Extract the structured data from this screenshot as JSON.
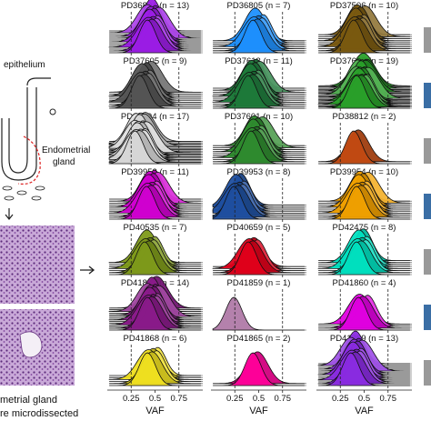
{
  "schematic": {
    "labels": [
      "epithelium",
      "Endometrial gland"
    ],
    "caption_lines": [
      "metrial gland",
      "re microdissected"
    ]
  },
  "chart_data": {
    "type": "area",
    "description": "Stacked ridgeline density plots of variant allele fraction per sample",
    "xlabel": "VAF",
    "xlim": [
      0,
      1
    ],
    "xticks": [
      0.25,
      0.5,
      0.75
    ],
    "xtick_labels": [
      "0.25",
      "0.5",
      "0.75"
    ],
    "reference_lines": [
      0.25,
      0.75
    ],
    "panels": [
      {
        "label": "PD36804 (n = 13)",
        "n": 13,
        "color": "#9B1CE6",
        "peak": 0.48
      },
      {
        "label": "PD36805 (n = 7)",
        "n": 7,
        "color": "#1E90FF",
        "peak": 0.5
      },
      {
        "label": "PD37506 (n = 10)",
        "n": 10,
        "color": "#7A5A10",
        "peak": 0.45
      },
      {
        "label": "PD37605 (n = 9)",
        "n": 9,
        "color": "#555555",
        "peak": 0.4
      },
      {
        "label": "PD37613 (n = 11)",
        "n": 11,
        "color": "#1E7A3A",
        "peak": 0.45
      },
      {
        "label": "PD37607 (n = 19)",
        "n": 19,
        "color": "#2AA02A",
        "peak": 0.48
      },
      {
        "label": "PD37594 (n = 17)",
        "n": 17,
        "color": "#D8D8D8",
        "peak": 0.35
      },
      {
        "label": "PD37601 (n = 10)",
        "n": 10,
        "color": "#2E8B2E",
        "peak": 0.48
      },
      {
        "label": "PD38812 (n = 2)",
        "n": 2,
        "color": "#C24A12",
        "peak": 0.45
      },
      {
        "label": "PD39952 (n = 11)",
        "n": 11,
        "color": "#D100D1",
        "peak": 0.47
      },
      {
        "label": "PD39953 (n = 8)",
        "n": 8,
        "color": "#1F4FA0",
        "peak": 0.3
      },
      {
        "label": "PD39954 (n = 10)",
        "n": 10,
        "color": "#F0A000",
        "peak": 0.48
      },
      {
        "label": "PD40535 (n = 7)",
        "n": 7,
        "color": "#7E9A1A",
        "peak": 0.45
      },
      {
        "label": "PD40659 (n = 5)",
        "n": 5,
        "color": "#E0001A",
        "peak": 0.45
      },
      {
        "label": "PD42475 (n = 8)",
        "n": 8,
        "color": "#00E0C0",
        "peak": 0.48
      },
      {
        "label": "PD41857 (n = 14)",
        "n": 14,
        "color": "#8A1A8A",
        "peak": 0.48
      },
      {
        "label": "PD41859 (n = 1)",
        "n": 1,
        "color": "#B07AA8",
        "peak": 0.3
      },
      {
        "label": "PD41860 (n = 4)",
        "n": 4,
        "color": "#E000E0",
        "peak": 0.5
      },
      {
        "label": "PD41868 (n = 6)",
        "n": 6,
        "color": "#F0E020",
        "peak": 0.48
      },
      {
        "label": "PD41865 (n = 2)",
        "n": 2,
        "color": "#FF0099",
        "peak": 0.5
      },
      {
        "label": "PD41869 (n = 13)",
        "n": 13,
        "color": "#8A2BE2",
        "peak": 0.42
      }
    ]
  }
}
